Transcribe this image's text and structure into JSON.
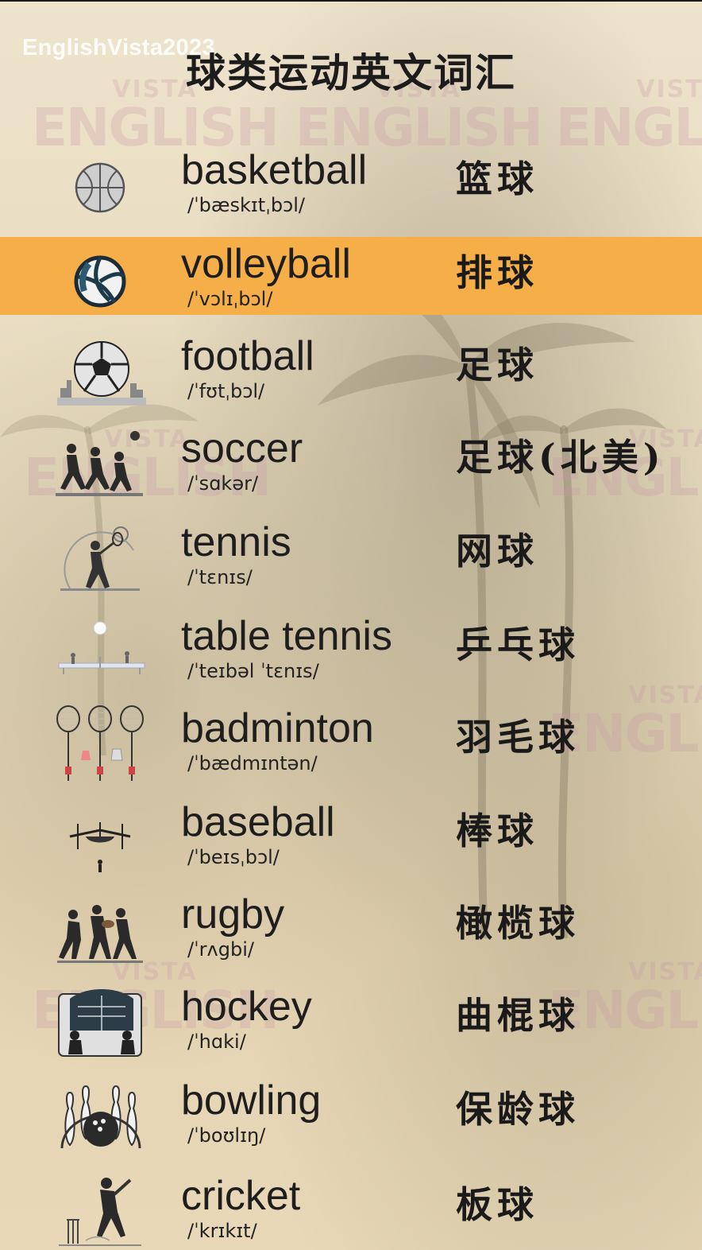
{
  "channel_tag": "EnglishVista2023",
  "title": "球类运动英文词汇",
  "watermark": {
    "small": "VISTA",
    "big": "ENGLISH"
  },
  "colors": {
    "highlight": "#f5ae48",
    "text": "#1e1e1e",
    "background": "#e8dcc2"
  },
  "highlighted_index": 1,
  "items": [
    {
      "icon": "basketball-icon",
      "word": "basketball",
      "ipa": "/ˈbæskɪtˌbɔl/",
      "cn": "篮球"
    },
    {
      "icon": "volleyball-icon",
      "word": "volleyball",
      "ipa": "/ˈvɔlɪˌbɔl/",
      "cn": "排球"
    },
    {
      "icon": "football-icon",
      "word": "football",
      "ipa": "/ˈfʊtˌbɔl/",
      "cn": "足球"
    },
    {
      "icon": "soccer-players-icon",
      "word": "soccer",
      "ipa": "/ˈsɑkər/",
      "cn": "足球(北美)"
    },
    {
      "icon": "tennis-player-icon",
      "word": "tennis",
      "ipa": "/ˈtɛnɪs/",
      "cn": "网球"
    },
    {
      "icon": "table-tennis-icon",
      "word": "table tennis",
      "ipa": "/ˈteɪbəl ˈtɛnɪs/",
      "cn": "乒乓球"
    },
    {
      "icon": "badminton-rackets-icon",
      "word": "badminton",
      "ipa": "/ˈbædmɪntən/",
      "cn": "羽毛球"
    },
    {
      "icon": "baseball-field-icon",
      "word": "baseball",
      "ipa": "/ˈbeɪsˌbɔl/",
      "cn": "棒球"
    },
    {
      "icon": "rugby-players-icon",
      "word": "rugby",
      "ipa": "/ˈrʌgbi/",
      "cn": "橄榄球"
    },
    {
      "icon": "hockey-rink-icon",
      "word": "hockey",
      "ipa": "/ˈhɑki/",
      "cn": "曲棍球"
    },
    {
      "icon": "bowling-pins-icon",
      "word": "bowling",
      "ipa": "/ˈboʊlɪŋ/",
      "cn": "保龄球"
    },
    {
      "icon": "cricket-player-icon",
      "word": "cricket",
      "ipa": "/ˈkrɪkɪt/",
      "cn": "板球"
    }
  ]
}
